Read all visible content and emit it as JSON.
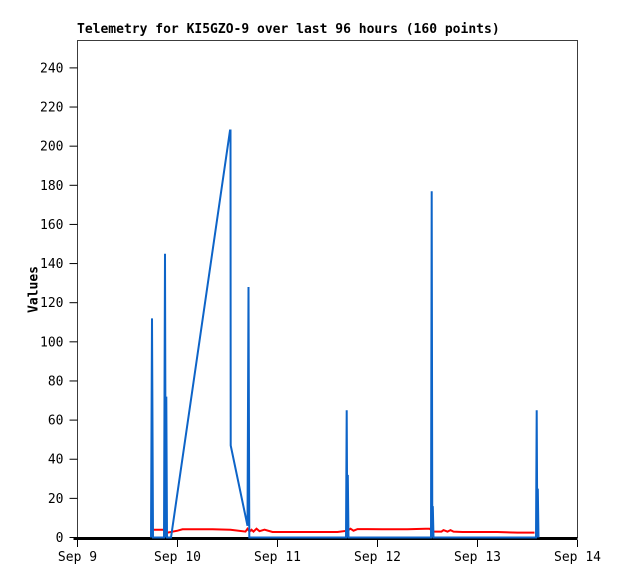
{
  "title": "Telemetry for KI5GZO-9 over last 96 hours (160 points)",
  "chart_data": {
    "type": "line",
    "title": "Telemetry for KI5GZO-9 over last 96 hours (160 points)",
    "xlabel": "",
    "ylabel": "Values",
    "grid": false,
    "legend": "none",
    "xlim_days": [
      0,
      5
    ],
    "ylim": [
      0,
      254
    ],
    "x_ticks": [
      {
        "day": 0,
        "label": "Sep 9"
      },
      {
        "day": 1,
        "label": "Sep 10"
      },
      {
        "day": 2,
        "label": "Sep 11"
      },
      {
        "day": 3,
        "label": "Sep 12"
      },
      {
        "day": 4,
        "label": "Sep 13"
      },
      {
        "day": 5,
        "label": "Sep 14"
      }
    ],
    "y_ticks": [
      0,
      20,
      40,
      60,
      80,
      100,
      120,
      140,
      160,
      180,
      200,
      220,
      240
    ],
    "frame_color": "#3c3c3c",
    "axis_color": "#000000",
    "series": [
      {
        "name": "telemetry-channel-red",
        "color": "#ff0000",
        "width": 2,
        "points": [
          [
            0.76,
            4.0
          ],
          [
            0.86,
            4.0
          ],
          [
            0.88,
            2.5
          ],
          [
            0.9,
            2.5
          ],
          [
            1.0,
            3.5
          ],
          [
            1.05,
            4.2
          ],
          [
            1.35,
            4.2
          ],
          [
            1.53,
            4.0
          ],
          [
            1.68,
            3.0
          ],
          [
            1.7,
            4.5
          ],
          [
            1.72,
            3.0
          ],
          [
            1.74,
            4.0
          ],
          [
            1.76,
            3.0
          ],
          [
            1.79,
            4.5
          ],
          [
            1.82,
            3.2
          ],
          [
            1.87,
            4.0
          ],
          [
            1.95,
            2.8
          ],
          [
            2.6,
            2.8
          ],
          [
            2.7,
            3.5
          ],
          [
            2.73,
            4.5
          ],
          [
            2.76,
            3.5
          ],
          [
            2.8,
            4.3
          ],
          [
            2.9,
            4.3
          ],
          [
            3.1,
            4.2
          ],
          [
            3.3,
            4.2
          ],
          [
            3.48,
            4.5
          ],
          [
            3.52,
            4.5
          ],
          [
            3.56,
            3.0
          ],
          [
            3.64,
            3.0
          ],
          [
            3.66,
            3.8
          ],
          [
            3.7,
            3.0
          ],
          [
            3.73,
            3.8
          ],
          [
            3.76,
            3.0
          ],
          [
            3.85,
            2.8
          ],
          [
            4.2,
            2.8
          ],
          [
            4.4,
            2.5
          ],
          [
            4.57,
            2.5
          ]
        ]
      },
      {
        "name": "telemetry-channel-blue",
        "color": "#0d64c8",
        "width": 2,
        "points": [
          [
            0.735,
            0
          ],
          [
            0.745,
            112
          ],
          [
            0.755,
            0
          ],
          [
            0.865,
            0
          ],
          [
            0.875,
            145
          ],
          [
            0.882,
            0
          ],
          [
            0.888,
            72
          ],
          [
            0.895,
            0
          ],
          [
            0.935,
            0
          ],
          [
            1.525,
            208
          ],
          [
            1.53,
            208
          ],
          [
            1.532,
            47
          ],
          [
            1.7,
            6
          ],
          [
            1.71,
            128
          ],
          [
            1.718,
            0
          ],
          [
            2.685,
            0
          ],
          [
            2.692,
            65
          ],
          [
            2.698,
            0
          ],
          [
            2.703,
            32
          ],
          [
            2.71,
            0
          ],
          [
            3.535,
            0
          ],
          [
            3.542,
            177
          ],
          [
            3.548,
            0
          ],
          [
            3.553,
            16
          ],
          [
            3.56,
            0
          ],
          [
            4.585,
            0
          ],
          [
            4.592,
            65
          ],
          [
            4.598,
            0
          ],
          [
            4.603,
            25
          ],
          [
            4.61,
            0
          ]
        ]
      }
    ]
  }
}
